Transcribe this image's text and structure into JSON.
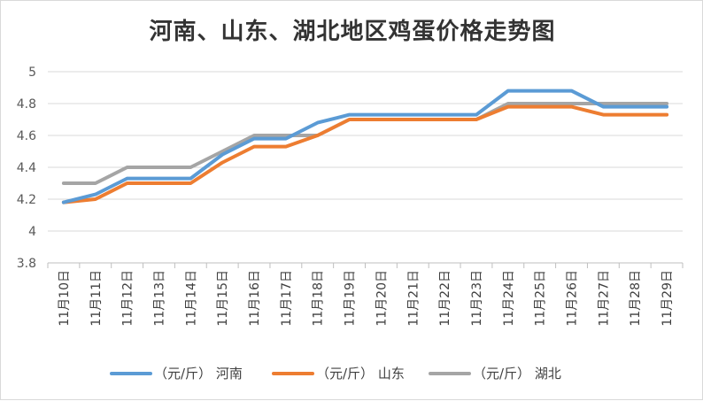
{
  "chart_data": {
    "type": "line",
    "title": "河南、山东、湖北地区鸡蛋价格走势图",
    "categories": [
      "11月10日",
      "11月11日",
      "11月12日",
      "11月13日",
      "11月14日",
      "11月15日",
      "11月16日",
      "11月17日",
      "11月18日",
      "11月19日",
      "11月20日",
      "11月21日",
      "11月22日",
      "11月23日",
      "11月24日",
      "11月25日",
      "11月26日",
      "11月27日",
      "11月28日",
      "11月29日"
    ],
    "ylim": [
      3.8,
      5
    ],
    "yticks": [
      "3.8",
      "4",
      "4.2",
      "4.4",
      "4.6",
      "4.8",
      "5"
    ],
    "grid": true,
    "legend_position": "bottom",
    "series": [
      {
        "name": "（元/斤） 河南",
        "color": "#5b9bd5",
        "values": [
          4.18,
          4.23,
          4.33,
          4.33,
          4.33,
          4.48,
          4.58,
          4.58,
          4.68,
          4.73,
          4.73,
          4.73,
          4.73,
          4.73,
          4.88,
          4.88,
          4.88,
          4.78,
          4.78,
          4.78
        ]
      },
      {
        "name": "（元/斤） 山东",
        "color": "#ed7d31",
        "values": [
          4.18,
          4.2,
          4.3,
          4.3,
          4.3,
          4.43,
          4.53,
          4.53,
          4.6,
          4.7,
          4.7,
          4.7,
          4.7,
          4.7,
          4.78,
          4.78,
          4.78,
          4.73,
          4.73,
          4.73
        ]
      },
      {
        "name": "（元/斤） 湖北",
        "color": "#a5a5a5",
        "values": [
          4.3,
          4.3,
          4.4,
          4.4,
          4.4,
          4.5,
          4.6,
          4.6,
          4.6,
          4.7,
          4.7,
          4.7,
          4.7,
          4.7,
          4.8,
          4.8,
          4.8,
          4.8,
          4.8,
          4.8
        ]
      }
    ]
  }
}
